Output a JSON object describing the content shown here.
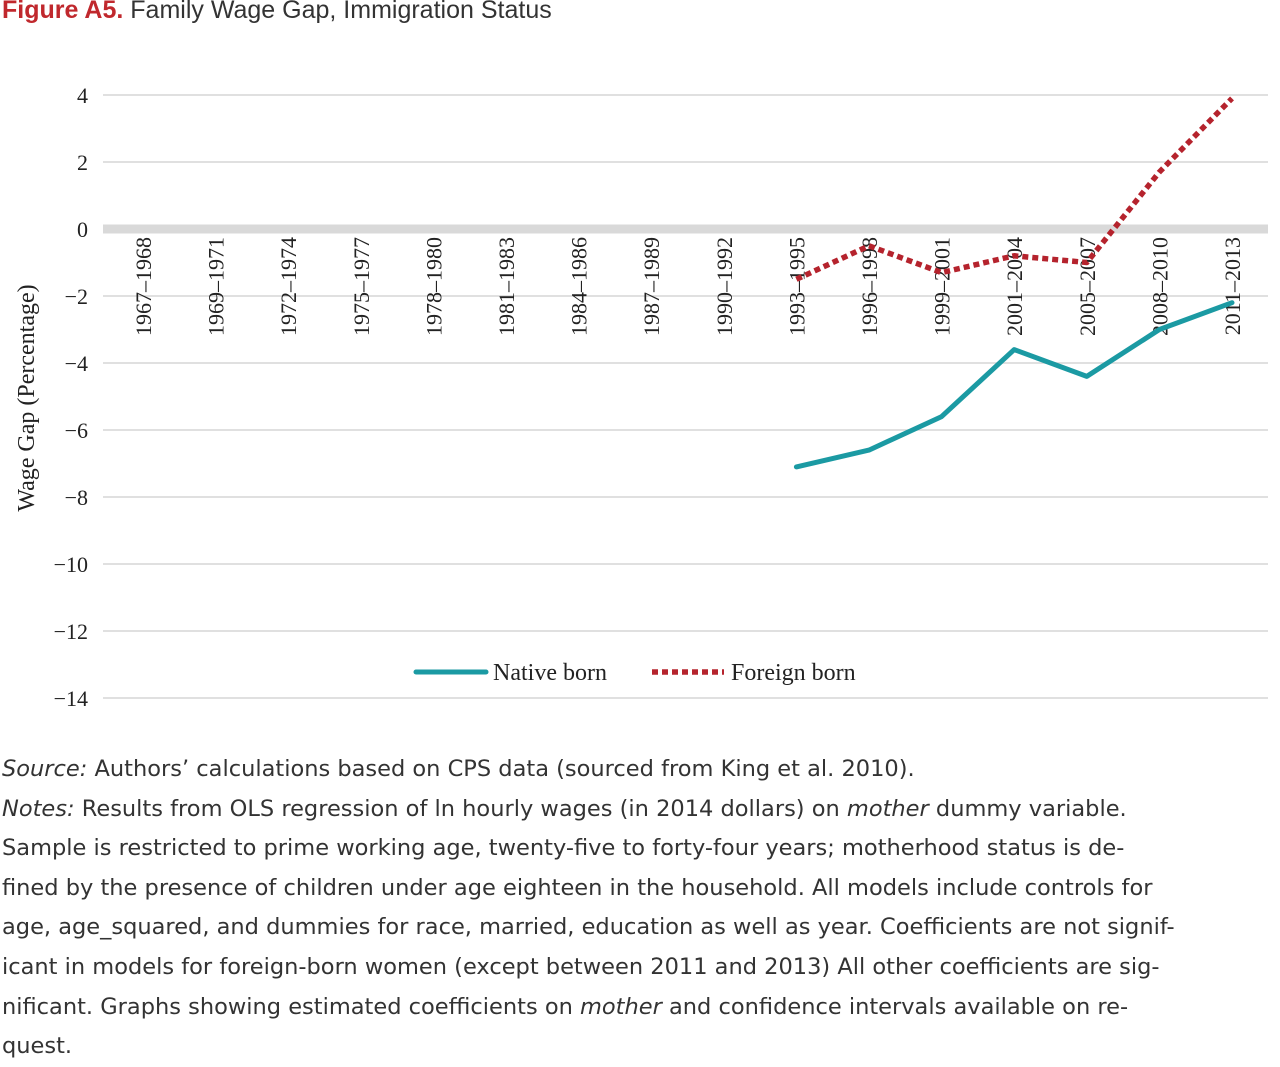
{
  "figure": {
    "label": "Figure A5.",
    "title": "Family Wage Gap, Immigration Status"
  },
  "chart_data": {
    "type": "line",
    "ylabel": "Wage Gap (Percentage)",
    "xlabel": "",
    "ylim": [
      -14,
      4
    ],
    "yticks": [
      4,
      2,
      0,
      -2,
      -4,
      -6,
      -8,
      -10,
      -12,
      -14
    ],
    "ytick_labels": [
      "4",
      "2",
      "0",
      "−2",
      "−4",
      "−6",
      "−8",
      "−10",
      "−12",
      "−14"
    ],
    "grid": true,
    "legend_position": "bottom",
    "categories": [
      "1967–1968",
      "1969–1971",
      "1972–1974",
      "1975–1977",
      "1978–1980",
      "1981–1983",
      "1984–1986",
      "1987–1989",
      "1990–1992",
      "1993–1995",
      "1996–1998",
      "1999–2001",
      "2001–2004",
      "2005–2007",
      "2008–2010",
      "2011–2013"
    ],
    "series": [
      {
        "name": "Native born",
        "color": "#1b9aa3",
        "style": "solid",
        "values": [
          null,
          null,
          null,
          null,
          null,
          null,
          null,
          null,
          null,
          -7.1,
          -6.6,
          -5.6,
          -3.6,
          -4.4,
          -3.0,
          -2.2
        ]
      },
      {
        "name": "Foreign born",
        "color": "#b5232d",
        "style": "dotted",
        "values": [
          null,
          null,
          null,
          null,
          null,
          null,
          null,
          null,
          null,
          -1.5,
          -0.5,
          -1.3,
          -0.8,
          -1.0,
          1.7,
          3.9
        ]
      }
    ]
  },
  "notes": {
    "source_label": "Source:",
    "source_text": " Authors’ calculations based on CPS data (sourced from King et al. 2010).",
    "notes_label": "Notes:",
    "line1_a": " Results from OLS regression of ln hourly wages (in 2014 dollars) on ",
    "line1_em": "mother",
    "line1_b": " dummy variable.",
    "line2": "Sample is restricted to prime working age, twenty-five to forty-four years; motherhood status is de-",
    "line3": "fined by the presence of children under age eighteen in the household. All models include controls for",
    "line4": "age, age_squared, and dummies for race, married, education as well as year. Coefficients are not signif-",
    "line5": "icant in models for foreign-born women (except between 2011 and 2013) All other coefficients are sig-",
    "line6_a": "nificant. Graphs showing estimated coefficients on ",
    "line6_em": "mother",
    "line6_b": " and confidence intervals available on re-",
    "line7": "quest."
  }
}
